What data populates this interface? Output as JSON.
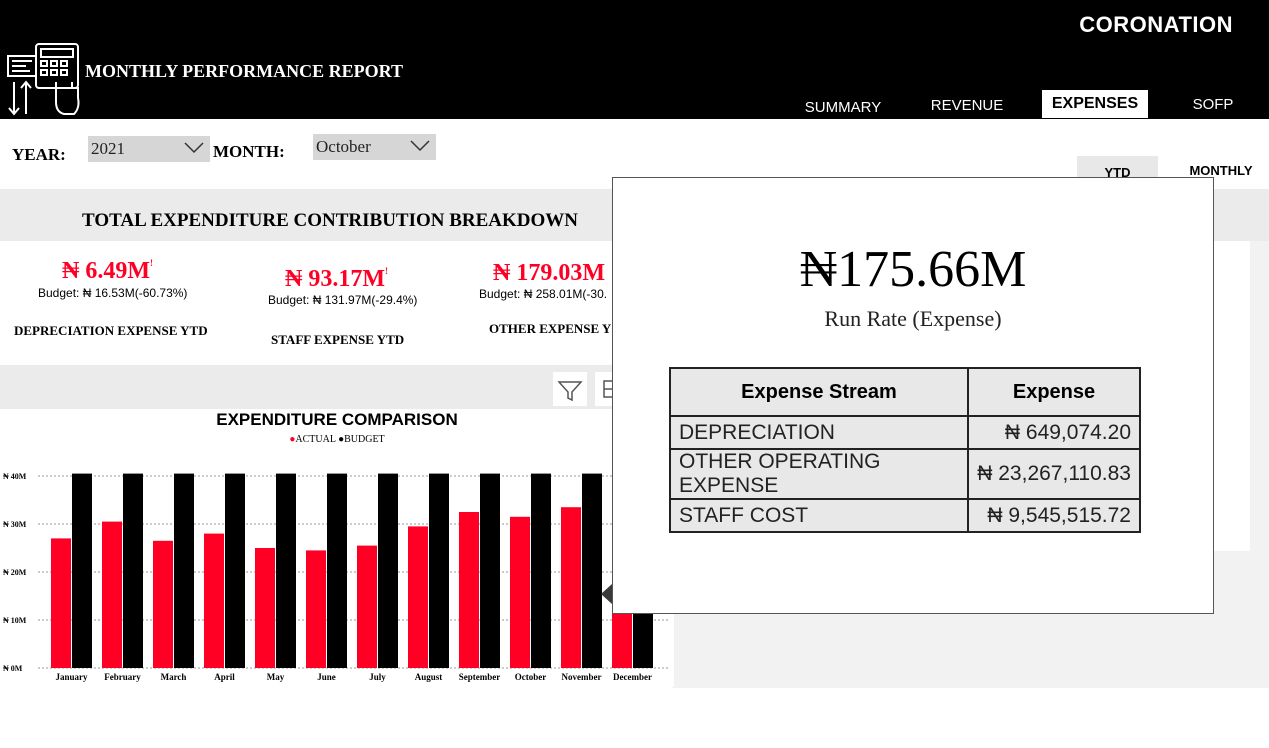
{
  "header": {
    "brand": "CORONATION",
    "title": "MONTHLY PERFORMANCE REPORT",
    "tabs": [
      {
        "label": "SUMMARY",
        "active": false
      },
      {
        "label": "REVENUE",
        "active": false
      },
      {
        "label": "EXPENSES",
        "active": true
      },
      {
        "label": "SOFP",
        "active": false
      }
    ]
  },
  "filters": {
    "year_label": "YEAR:",
    "year_value": "2021",
    "month_label": "MONTH:",
    "month_value": "October"
  },
  "period_toggle": {
    "ytd": "YTD",
    "monthly": "MONTHLY"
  },
  "breakdown": {
    "title": "TOTAL EXPENDITURE CONTRIBUTION BREAKDOWN",
    "kpis": [
      {
        "value": "₦ 6.49M",
        "marker": "!",
        "budget": "Budget: ₦ 16.53M(-60.73%)",
        "label": "DEPRECIATION EXPENSE YTD"
      },
      {
        "value": "₦ 93.17M",
        "marker": "!",
        "budget": "Budget: ₦ 131.97M(-29.4%)",
        "label": "STAFF EXPENSE YTD"
      },
      {
        "value": "₦ 179.03M",
        "marker": "",
        "budget": "Budget: ₦ 258.01M(-30.",
        "label": "OTHER EXPENSE Y"
      }
    ]
  },
  "colors": {
    "actual": "#ff0024",
    "budget": "#000000",
    "header_bg": "#000000"
  },
  "chart_data": {
    "type": "bar",
    "title": "EXPENDITURE COMPARISON",
    "legend_position": "top-center",
    "categories": [
      "January",
      "February",
      "March",
      "April",
      "May",
      "June",
      "July",
      "August",
      "September",
      "October",
      "November",
      "December"
    ],
    "series": [
      {
        "name": "ACTUAL",
        "values": [
          27,
          30.5,
          26.5,
          28,
          25,
          24.5,
          25.5,
          29.5,
          32.5,
          31.5,
          33.5,
          12
        ]
      },
      {
        "name": "BUDGET",
        "values": [
          40.5,
          40.5,
          40.5,
          40.5,
          40.5,
          40.5,
          40.5,
          40.5,
          40.5,
          40.5,
          40.5,
          40.5
        ]
      }
    ],
    "y_ticks": [
      "₦ 0M",
      "₦ 10M",
      "₦ 20M",
      "₦ 30M",
      "₦ 40M"
    ],
    "y_tick_values": [
      0,
      10,
      20,
      30,
      40
    ],
    "ylim": [
      0,
      40
    ],
    "grid": true
  },
  "tooltip": {
    "value": "₦175.66M",
    "label": "Run Rate (Expense)",
    "columns": [
      "Expense Stream",
      "Expense"
    ],
    "rows": [
      {
        "stream": "DEPRECIATION",
        "expense": "₦ 649,074.20"
      },
      {
        "stream": "OTHER OPERATING EXPENSE",
        "expense": "₦ 23,267,110.83"
      },
      {
        "stream": "STAFF COST",
        "expense": "₦ 9,545,515.72"
      }
    ]
  }
}
